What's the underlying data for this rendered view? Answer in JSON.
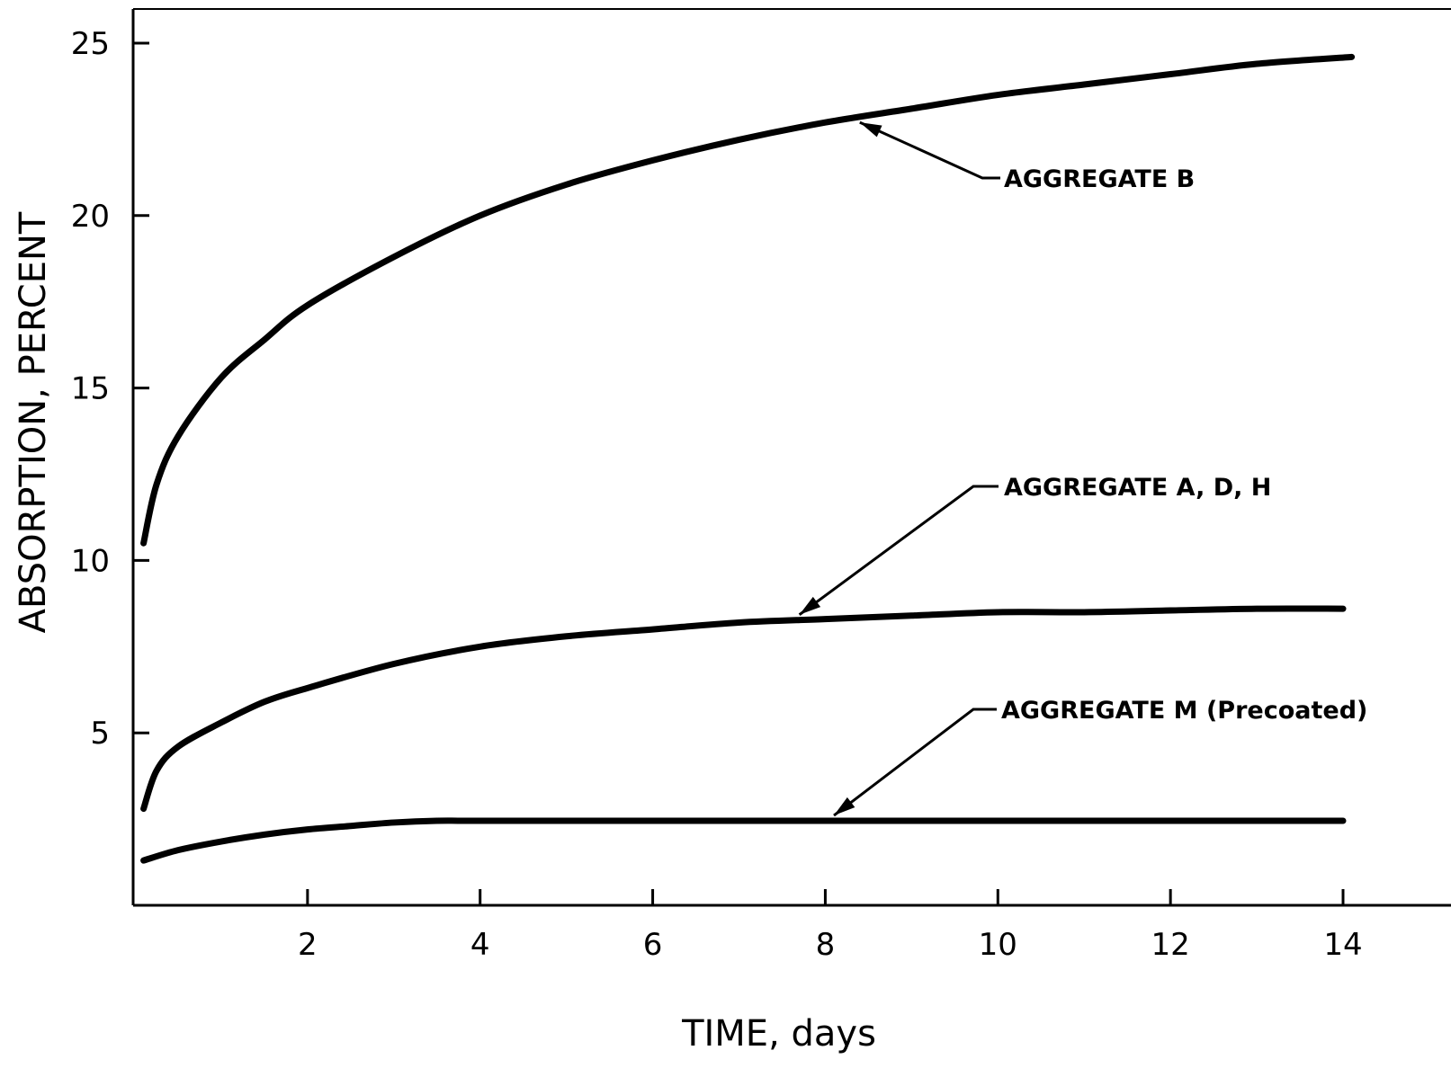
{
  "chart_data": {
    "type": "line",
    "title": "",
    "xlabel": "TIME, days",
    "ylabel": "ABSORPTION, PERCENT",
    "xlim": [
      0,
      14.5
    ],
    "ylim": [
      0,
      25
    ],
    "x_ticks": [
      2,
      4,
      6,
      8,
      10,
      12,
      14
    ],
    "y_ticks": [
      5,
      10,
      15,
      20,
      25
    ],
    "grid": false,
    "legend": "none",
    "line_color": "#000000",
    "series": [
      {
        "name": "AGGREGATE  B",
        "x": [
          0.1,
          0.25,
          0.5,
          1,
          1.5,
          2,
          3,
          4,
          5,
          6,
          7,
          8,
          9,
          10,
          11,
          12,
          13,
          14.1
        ],
        "y": [
          10.5,
          12.2,
          13.6,
          15.3,
          16.4,
          17.4,
          18.8,
          20.0,
          20.9,
          21.6,
          22.2,
          22.7,
          23.1,
          23.5,
          23.8,
          24.1,
          24.4,
          24.6
        ]
      },
      {
        "name": "AGGREGATE  A, D, H",
        "x": [
          0.1,
          0.25,
          0.5,
          1,
          1.5,
          2,
          3,
          4,
          5,
          6,
          7,
          8,
          9,
          10,
          11,
          12,
          13,
          14
        ],
        "y": [
          2.8,
          3.9,
          4.6,
          5.3,
          5.9,
          6.3,
          7.0,
          7.5,
          7.8,
          8.0,
          8.2,
          8.3,
          8.4,
          8.5,
          8.5,
          8.55,
          8.6,
          8.6
        ]
      },
      {
        "name": "AGGREGATE  M  (Precoated)",
        "x": [
          0.1,
          0.5,
          1,
          1.5,
          2,
          2.5,
          3,
          3.5,
          4,
          6,
          8,
          10,
          12,
          14
        ],
        "y": [
          1.3,
          1.6,
          1.85,
          2.05,
          2.2,
          2.3,
          2.4,
          2.45,
          2.45,
          2.45,
          2.45,
          2.45,
          2.45,
          2.45
        ]
      }
    ],
    "annotations": [
      {
        "text": "AGGREGATE  B",
        "series": 0,
        "points_to_x": 8.4
      },
      {
        "text": "AGGREGATE  A, D, H",
        "series": 1,
        "points_to_x": 7.7
      },
      {
        "text": "AGGREGATE  M  (Precoated)",
        "series": 2,
        "points_to_x": 8.1
      }
    ]
  }
}
